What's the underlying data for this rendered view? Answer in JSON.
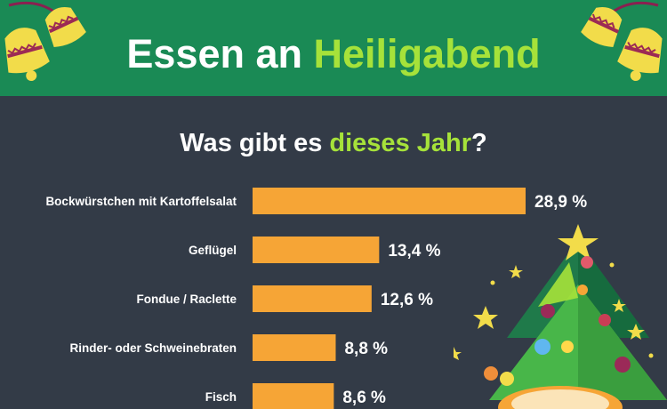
{
  "header": {
    "title_part1": "Essen an",
    "title_part2": "Heiligabend"
  },
  "subtitle": {
    "part1": "Was gibt es",
    "part2": "dieses Jahr",
    "part3": "?"
  },
  "colors": {
    "header_bg": "#1a8a55",
    "page_bg": "#333b47",
    "bar": "#f6a536",
    "accent": "#a6e23a",
    "text": "#ffffff"
  },
  "chart_data": {
    "type": "bar",
    "orientation": "horizontal",
    "categories": [
      "Bockwürstchen mit Kartoffelsalat",
      "Geflügel",
      "Fondue / Raclette",
      "Rinder- oder Schweinebraten",
      "Fisch"
    ],
    "values": [
      28.9,
      13.4,
      12.6,
      8.8,
      8.6
    ],
    "value_labels": [
      "28,9 %",
      "13,4 %",
      "12,6 %",
      "8,8 %",
      "8,6 %"
    ],
    "unit": "%",
    "title": "Was gibt es dieses Jahr?",
    "xlabel": "",
    "ylabel": "",
    "grid": false,
    "legend": "none"
  }
}
